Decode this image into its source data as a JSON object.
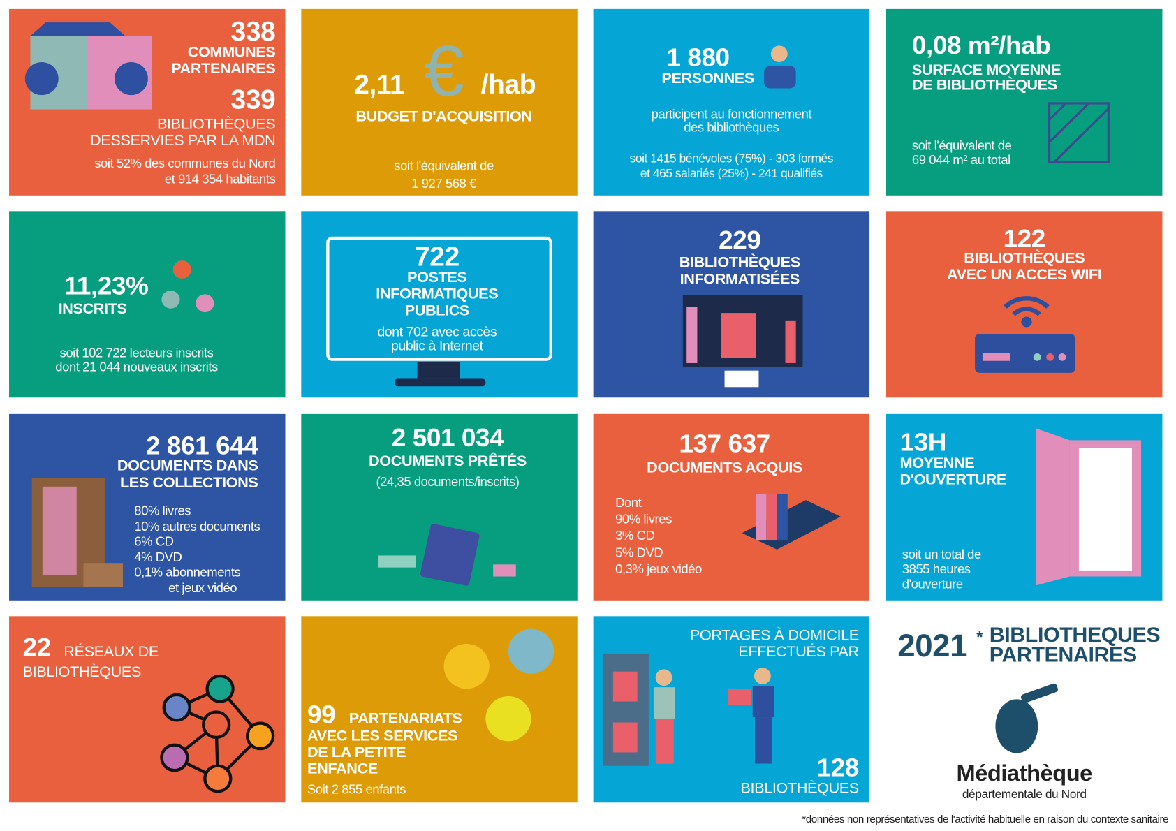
{
  "tiles": [
    {
      "lines": [
        "338",
        "COMMUNES",
        "PARTENAIRES",
        "339",
        "BIBLIOTHÈQUES",
        "DESSERVIES PAR LA MDN",
        "soit 52% des communes du Nord",
        "et 914 354 habitants"
      ]
    },
    {
      "lines": [
        "2,11",
        "€",
        "/hab",
        "BUDGET D'ACQUISITION",
        "soit l'équivalent de",
        "1 927 568 €"
      ]
    },
    {
      "lines": [
        "1 880",
        "PERSONNES",
        "participent au fonctionnement",
        "des bibliothèques",
        "soit 1415 bénévoles (75%) - 303 formés",
        "et 465 salariés (25%) - 241 qualifiés"
      ]
    },
    {
      "lines": [
        "0,08 m²/hab",
        "SURFACE MOYENNE",
        "DE BIBLIOTHÈQUES",
        "soit l'équivalent de",
        "69 044 m² au total"
      ]
    },
    {
      "lines": [
        "11,23%",
        "INSCRITS",
        "soit 102 722  lecteurs inscrits",
        "dont 21 044 nouveaux inscrits"
      ]
    },
    {
      "lines": [
        "722",
        "POSTES",
        "INFORMATIQUES",
        "PUBLICS",
        "dont 702 avec accès",
        "public à Internet"
      ]
    },
    {
      "lines": [
        "229",
        "BIBLIOTHÈQUES",
        "INFORMATISÉES"
      ]
    },
    {
      "lines": [
        "122",
        "BIBLIOTHÈQUES",
        "AVEC UN ACCES WIFI"
      ]
    },
    {
      "lines": [
        "2 861 644",
        "DOCUMENTS DANS",
        "LES COLLECTIONS",
        "80%  livres",
        "10%  autres documents",
        "6%    CD",
        "4%    DVD",
        "0,1% abonnements",
        "et jeux vidéo"
      ]
    },
    {
      "lines": [
        "2 501 034",
        "DOCUMENTS PRÊTÉS",
        "(24,35 documents/inscrits)"
      ]
    },
    {
      "lines": [
        "137 637",
        "DOCUMENTS ACQUIS",
        "Dont",
        "90% livres",
        "3% CD",
        "5% DVD",
        "0,3% jeux vidéo"
      ]
    },
    {
      "lines": [
        "13H",
        "MOYENNE",
        "D'OUVERTURE",
        "soit un total de",
        "3855 heures",
        "d'ouverture"
      ]
    },
    {
      "lines": [
        "22",
        "RÉSEAUX DE",
        "BIBLIOTHÈQUES"
      ]
    },
    {
      "lines": [
        "99",
        "PARTENARIATS",
        "AVEC LES SERVICES",
        "DE LA PETITE",
        "ENFANCE",
        "Soit 2 855 enfants"
      ]
    },
    {
      "lines": [
        "PORTAGES À DOMICILE",
        "EFFECTUÉS PAR",
        "128",
        "BIBLIOTHÈQUES"
      ]
    },
    {
      "lines": [
        "2021",
        "*",
        "BIBLIOTHEQUES",
        "PARTENAIRES",
        "Médiathèque",
        "départementale du Nord"
      ]
    }
  ],
  "footnote": "*données non représentatives de l'activité habituelle en raison du contexte sanitaire"
}
